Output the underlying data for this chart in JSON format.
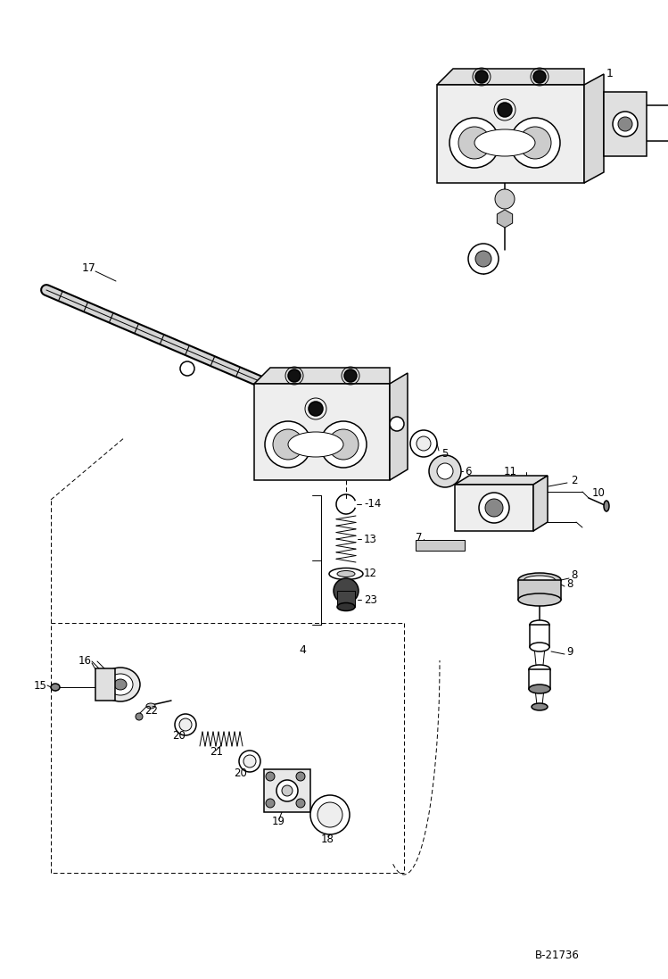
{
  "bg": "#ffffff",
  "fg": "#000000",
  "ref": "B-21736",
  "fig_w": 7.49,
  "fig_h": 10.97,
  "dpi": 100
}
